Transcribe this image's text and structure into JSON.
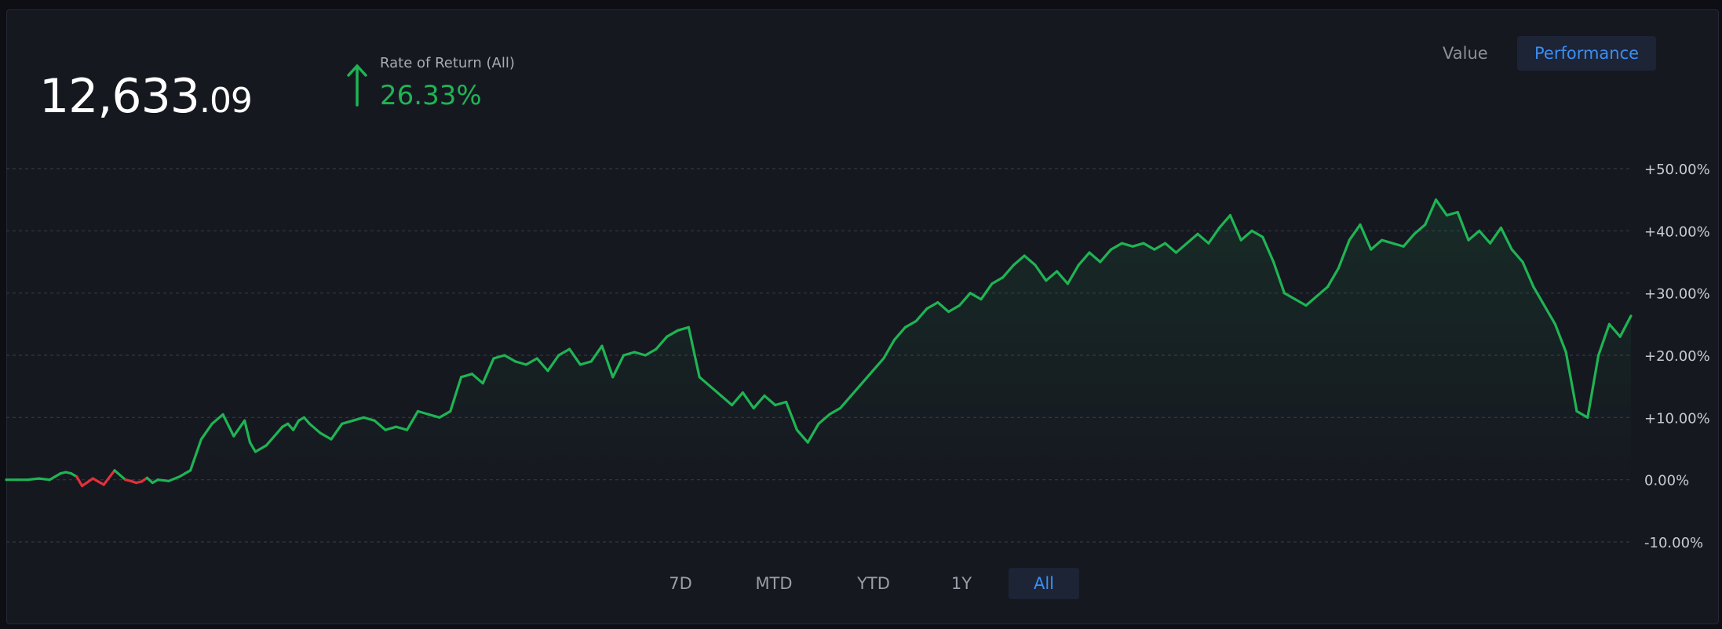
{
  "header": {
    "balance_int": "12,633",
    "balance_dec": ".09",
    "rate_label": "Rate of Return (All)",
    "rate_value": "26.33%"
  },
  "view_toggle": {
    "value_label": "Value",
    "performance_label": "Performance",
    "selected": "Performance"
  },
  "ranges": [
    {
      "label": "7D",
      "active": false
    },
    {
      "label": "MTD",
      "active": false
    },
    {
      "label": "YTD",
      "active": false
    },
    {
      "label": "1Y",
      "active": false
    },
    {
      "label": "All",
      "active": true
    }
  ],
  "colors": {
    "positive": "#1fb454",
    "negative": "#e0323b",
    "accent": "#3a8ef5"
  },
  "chart_data": {
    "type": "line",
    "xlabel": "",
    "ylabel": "",
    "ylim": [
      -10,
      50
    ],
    "yticks": [
      {
        "value": 50,
        "label": "+50.00%"
      },
      {
        "value": 40,
        "label": "+40.00%"
      },
      {
        "value": 30,
        "label": "+30.00%"
      },
      {
        "value": 20,
        "label": "+20.00%"
      },
      {
        "value": 10,
        "label": "+10.00%"
      },
      {
        "value": 0,
        "label": "0.00%"
      },
      {
        "value": -10,
        "label": "-10.00%"
      }
    ],
    "grid": true,
    "x": [
      0,
      2,
      4,
      6,
      8,
      9,
      10,
      11,
      12,
      13,
      14,
      16,
      18,
      20,
      22,
      23,
      24,
      25,
      26,
      27,
      28,
      30,
      32,
      33,
      34,
      36,
      38,
      40,
      42,
      44,
      45,
      46,
      48,
      50,
      51,
      52,
      53,
      54,
      55,
      56,
      58,
      60,
      62,
      64,
      66,
      68,
      70,
      72,
      74,
      76,
      78,
      80,
      82,
      84,
      86,
      88,
      90,
      92,
      94,
      96,
      98,
      100,
      102,
      104,
      106,
      108,
      110,
      112,
      114,
      116,
      118,
      120,
      122,
      124,
      126,
      128,
      130,
      132,
      134,
      136,
      138,
      140,
      142,
      144,
      146,
      148,
      150,
      152,
      154,
      156,
      158,
      160,
      162,
      164,
      166,
      168,
      170,
      172,
      174,
      176,
      178,
      180,
      182,
      184,
      186,
      188,
      190,
      192,
      194,
      196,
      198,
      200,
      202,
      204,
      206,
      208,
      210,
      212,
      214,
      216,
      218,
      220,
      222,
      224,
      226,
      228,
      230,
      232,
      234,
      236,
      238,
      240,
      242,
      244,
      246,
      248,
      250,
      252,
      254,
      256,
      258,
      260,
      262,
      264,
      266,
      268,
      270,
      272,
      274,
      276,
      278,
      280,
      282,
      284,
      286,
      288,
      290,
      292,
      294,
      296,
      298,
      300
    ],
    "values": [
      0,
      0,
      0,
      0.2,
      0,
      0.5,
      1.0,
      1.2,
      1.0,
      0.5,
      -1.0,
      0.2,
      -0.8,
      1.5,
      0,
      -0.2,
      -0.5,
      -0.3,
      0.3,
      -0.5,
      0,
      -0.2,
      0.5,
      1.0,
      1.5,
      6.5,
      9.0,
      10.5,
      7.0,
      9.5,
      6.0,
      4.5,
      5.5,
      7.5,
      8.5,
      9.0,
      8.0,
      9.5,
      10.0,
      9.0,
      7.5,
      6.5,
      9.0,
      9.5,
      10.0,
      9.5,
      8.0,
      8.5,
      8.0,
      11.0,
      10.5,
      10.0,
      11.0,
      16.5,
      17.0,
      15.5,
      19.5,
      20.0,
      19.0,
      18.5,
      19.5,
      17.5,
      20.0,
      21.0,
      18.5,
      19.0,
      21.5,
      16.5,
      20.0,
      20.5,
      20.0,
      21.0,
      23.0,
      24.0,
      24.5,
      16.5,
      15.0,
      13.5,
      12.0,
      14.0,
      11.5,
      13.5,
      12.0,
      12.5,
      8.0,
      6.0,
      9.0,
      10.5,
      11.5,
      13.5,
      15.5,
      17.5,
      19.5,
      22.5,
      24.5,
      25.5,
      27.5,
      28.5,
      27.0,
      28.0,
      30.0,
      29.0,
      31.5,
      32.5,
      34.5,
      36.0,
      34.5,
      32.0,
      33.5,
      31.5,
      34.5,
      36.5,
      35.0,
      37.0,
      38.0,
      37.5,
      38.0,
      37.0,
      38.0,
      36.5,
      38.0,
      39.5,
      38.0,
      40.5,
      42.5,
      38.5,
      40.0,
      39.0,
      35.0,
      30.0,
      29.0,
      28.0,
      29.5,
      31.0,
      34.0,
      38.5,
      41.0,
      37.0,
      38.5,
      38.0,
      37.5,
      39.5,
      41.0,
      45.0,
      42.5,
      43.0,
      38.5,
      40.0,
      38.0,
      40.5,
      37.0,
      35.0,
      31.0,
      28.0,
      25.0,
      20.5,
      11.0,
      10.0,
      20.0,
      25.0,
      23.0,
      26.33
    ],
    "negative_ranges": [
      [
        10,
        26
      ]
    ]
  }
}
